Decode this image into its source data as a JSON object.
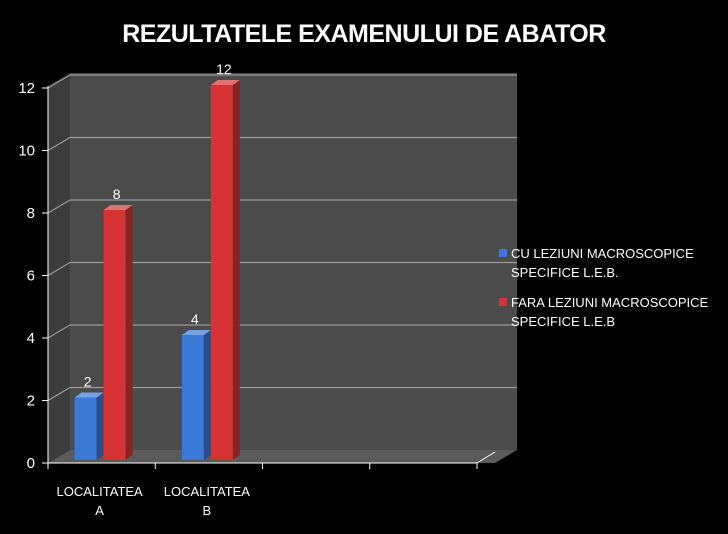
{
  "chart_data": {
    "type": "bar",
    "title": "REZULTATELE EXAMENULUI DE ABATOR",
    "xlabel": "",
    "ylabel": "",
    "categories": [
      [
        "LOCALITATEA",
        "A"
      ],
      [
        "LOCALITATEA",
        "B"
      ],
      [
        "",
        ""
      ],
      [
        "",
        ""
      ]
    ],
    "series": [
      {
        "name": [
          "CU LEZIUNI MACROSCOPICE",
          "SPECIFICE L.E.B."
        ],
        "values": [
          2,
          4,
          null,
          null
        ],
        "data_labels": [
          "2",
          "4",
          "",
          ""
        ],
        "color": "#3a7ad6"
      },
      {
        "name": [
          "FARA LEZIUNI MACROSCOPICE",
          "SPECIFICE L.E.B"
        ],
        "values": [
          8,
          12,
          null,
          null
        ],
        "data_labels": [
          "8",
          "12",
          "",
          ""
        ],
        "color": "#d63434"
      }
    ],
    "ylim": [
      0,
      12
    ],
    "yticks": [
      "0",
      "2",
      "4",
      "6",
      "8",
      "10",
      "12"
    ],
    "grid": true,
    "legend_position": "right",
    "three_d": true
  },
  "colors": {
    "background": "#000000",
    "wall": "#4b4b4b",
    "floor": "#5a5a5a",
    "grid": "#9a9a9a",
    "text": "#ffffff"
  }
}
